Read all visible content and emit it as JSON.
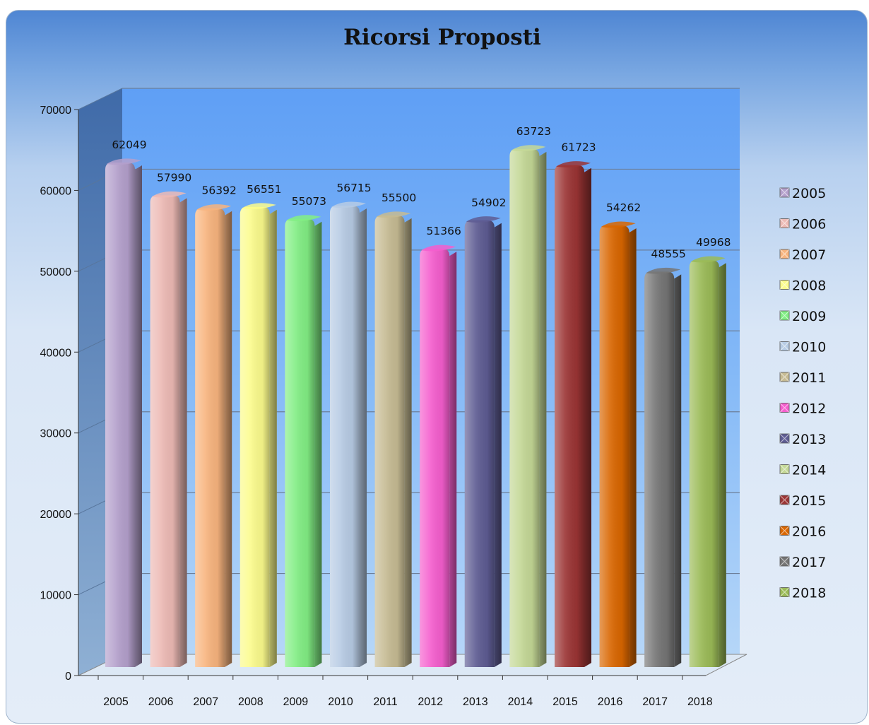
{
  "chart_data": {
    "type": "bar",
    "title": "Ricorsi Proposti",
    "xlabel": "",
    "ylabel": "",
    "ylim": [
      0,
      70000
    ],
    "yticks": [
      0,
      10000,
      20000,
      30000,
      40000,
      50000,
      60000,
      70000
    ],
    "grid": true,
    "legend_position": "right",
    "categories": [
      "2005",
      "2006",
      "2007",
      "2008",
      "2009",
      "2010",
      "2011",
      "2012",
      "2013",
      "2014",
      "2015",
      "2016",
      "2017",
      "2018"
    ],
    "values": [
      62049,
      57990,
      56392,
      56551,
      55073,
      56715,
      55500,
      51366,
      54902,
      63723,
      61723,
      54262,
      48555,
      49968
    ],
    "colors": [
      "#b4a0cc",
      "#edbab5",
      "#f8b47e",
      "#fbfb8c",
      "#82ee84",
      "#b7cbe4",
      "#c6bb93",
      "#f55ece",
      "#5e5c93",
      "#c4d896",
      "#9b3434",
      "#d96600",
      "#757575",
      "#9bbb57"
    ]
  }
}
